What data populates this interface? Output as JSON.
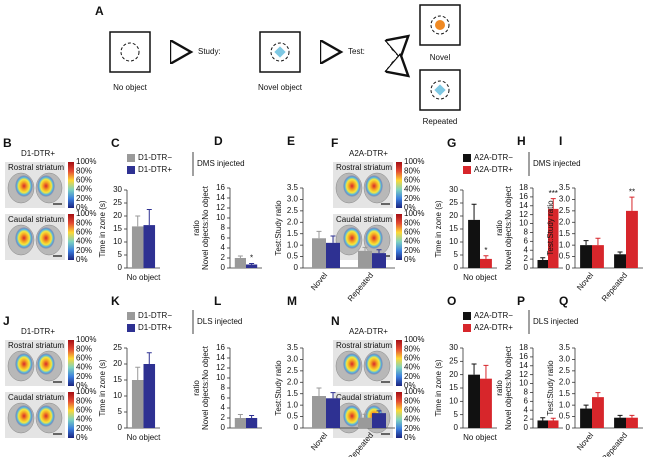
{
  "panel_a": {
    "label": "A",
    "no_object": "No object",
    "study": "Study:",
    "study_object": "Novel object",
    "test": "Test:",
    "novel": "Novel",
    "repeated": "Repeated"
  },
  "image_panels": [
    {
      "label": "B",
      "title": "D1-DTR+",
      "sections": [
        "Rostral striatum",
        "Caudal striatum"
      ]
    },
    {
      "label": "F",
      "title": "A2A-DTR+",
      "sections": [
        "Rostral striatum",
        "Caudal striatum"
      ]
    },
    {
      "label": "J",
      "title": "D1-DTR+",
      "sections": [
        "Rostral   striatum",
        "Caudal  striatum"
      ]
    },
    {
      "label": "N",
      "title": "A2A-DTR+",
      "sections": [
        "Rostral striatum",
        "Caudal striatum"
      ]
    }
  ],
  "colorbar_ticks": [
    "100%",
    "80%",
    "60%",
    "40%",
    "20%",
    "0%"
  ],
  "chart_data": [
    {
      "type": "bar",
      "label": "C",
      "ylabel": "Time in zone (s)",
      "categories": [
        "No object"
      ],
      "ylim": [
        0,
        30
      ],
      "yticks": [
        0,
        5,
        10,
        15,
        20,
        25,
        30
      ],
      "legend_note": "DMS injected",
      "series": [
        {
          "name": "D1-DTR−",
          "color": "#9a9a9a",
          "values": [
            16
          ],
          "errors": [
            4
          ]
        },
        {
          "name": "D1-DTR+",
          "color": "#2e3192",
          "values": [
            16.5
          ],
          "errors": [
            6
          ]
        }
      ]
    },
    {
      "type": "bar",
      "label": "D",
      "ylabel": [
        "Novel objects:No object",
        "ratio"
      ],
      "categories": [
        null
      ],
      "ylim": [
        0,
        16
      ],
      "yticks": [
        0,
        2,
        4,
        6,
        8,
        10,
        12,
        14,
        16
      ],
      "series": [
        {
          "color": "#9a9a9a",
          "values": [
            2
          ],
          "errors": [
            0.4
          ]
        },
        {
          "color": "#2e3192",
          "values": [
            0.7
          ],
          "errors": [
            0.2
          ],
          "annotations": [
            "*"
          ]
        }
      ]
    },
    {
      "type": "bar",
      "label": "E",
      "ylabel": "Test:Study ratio",
      "categories": [
        "Novel",
        "Repeated"
      ],
      "ylim": [
        0,
        3.5
      ],
      "yticks": [
        0,
        0.5,
        {
          "value": 1,
          "label": "1.0"
        },
        1.5,
        {
          "value": 2,
          "label": "2.0"
        },
        2.5,
        {
          "value": 3,
          "label": "3.0"
        },
        3.5
      ],
      "series": [
        {
          "color": "#9a9a9a",
          "values": [
            1.3,
            0.75
          ],
          "errors": [
            0.3,
            0.15
          ]
        },
        {
          "color": "#2e3192",
          "values": [
            1.1,
            0.65
          ],
          "errors": [
            0.3,
            0.15
          ]
        }
      ]
    },
    {
      "type": "bar",
      "label": "G",
      "ylabel": "Time in zone (s)",
      "categories": [
        "No object"
      ],
      "ylim": [
        0,
        30
      ],
      "yticks": [
        0,
        5,
        10,
        15,
        20,
        25,
        30
      ],
      "legend_note": "DMS injected",
      "series": [
        {
          "name": "A2A-DTR−",
          "color": "#111111",
          "values": [
            18.5
          ],
          "errors": [
            6
          ]
        },
        {
          "name": "A2A-DTR+",
          "color": "#d7262b",
          "values": [
            3.5
          ],
          "errors": [
            1.2
          ],
          "annotations": [
            "*"
          ]
        }
      ]
    },
    {
      "type": "bar",
      "label": "H",
      "ylabel": [
        "Novel objects:No object",
        "ratio"
      ],
      "categories": [
        null
      ],
      "ylim": [
        0,
        18
      ],
      "yticks": [
        0,
        2,
        4,
        6,
        8,
        10,
        12,
        14,
        16,
        18
      ],
      "series": [
        {
          "color": "#111111",
          "values": [
            1.8
          ],
          "errors": [
            0.5
          ]
        },
        {
          "color": "#d7262b",
          "values": [
            13.3
          ],
          "errors": [
            2.3
          ],
          "annotations": [
            "***"
          ]
        }
      ]
    },
    {
      "type": "bar",
      "label": "I",
      "ylabel": "Test:Study ratio",
      "categories": [
        "Novel",
        "Repeated"
      ],
      "ylim": [
        0,
        3.5
      ],
      "yticks": [
        0,
        0.5,
        {
          "value": 1,
          "label": "1.0"
        },
        1.5,
        {
          "value": 2,
          "label": "2.0"
        },
        2.5,
        {
          "value": 3,
          "label": "3.0"
        },
        3.5
      ],
      "series": [
        {
          "color": "#111111",
          "values": [
            1.0,
            0.6
          ],
          "errors": [
            0.2,
            0.1
          ]
        },
        {
          "color": "#d7262b",
          "values": [
            1.0,
            2.5
          ],
          "errors": [
            0.3,
            0.6
          ],
          "annotations": [
            null,
            "**"
          ]
        }
      ]
    },
    {
      "type": "bar",
      "label": "K",
      "ylabel": "Time in zone (s)",
      "categories": [
        "No object"
      ],
      "ylim": [
        0,
        25
      ],
      "yticks": [
        0,
        5,
        10,
        15,
        20,
        25
      ],
      "legend_note": "DLS injected",
      "series": [
        {
          "name": "D1-DTR−",
          "color": "#9a9a9a",
          "values": [
            15
          ],
          "errors": [
            4
          ]
        },
        {
          "name": "D1-DTR+",
          "color": "#2e3192",
          "values": [
            20
          ],
          "errors": [
            3.5
          ]
        }
      ]
    },
    {
      "type": "bar",
      "label": "L",
      "ylabel": [
        "Novel objects:No object",
        "ratio"
      ],
      "categories": [
        null
      ],
      "ylim": [
        0,
        16
      ],
      "yticks": [
        0,
        2,
        4,
        6,
        8,
        10,
        12,
        14,
        16
      ],
      "series": [
        {
          "color": "#9a9a9a",
          "values": [
            2
          ],
          "errors": [
            0.7
          ]
        },
        {
          "color": "#2e3192",
          "values": [
            2
          ],
          "errors": [
            0.5
          ]
        }
      ]
    },
    {
      "type": "bar",
      "label": "M",
      "ylabel": "Test:Study ratio",
      "categories": [
        "Novel",
        "Repeated"
      ],
      "ylim": [
        0,
        3.5
      ],
      "yticks": [
        0,
        0.5,
        {
          "value": 1,
          "label": "1.0"
        },
        1.5,
        {
          "value": 2,
          "label": "2.0"
        },
        2.5,
        {
          "value": 3,
          "label": "3.0"
        },
        3.5
      ],
      "series": [
        {
          "color": "#9a9a9a",
          "values": [
            1.4,
            0.45
          ],
          "errors": [
            0.35,
            0.15
          ]
        },
        {
          "color": "#2e3192",
          "values": [
            1.3,
            0.65
          ],
          "errors": [
            0.25,
            0.1
          ]
        }
      ]
    },
    {
      "type": "bar",
      "label": "O",
      "ylabel": "Time in zone (s)",
      "categories": [
        "No object"
      ],
      "ylim": [
        0,
        30
      ],
      "yticks": [
        0,
        5,
        10,
        15,
        20,
        25,
        30
      ],
      "legend_note": "DLS injected",
      "series": [
        {
          "name": "A2A-DTR−",
          "color": "#111111",
          "values": [
            20
          ],
          "errors": [
            4
          ]
        },
        {
          "name": "A2A-DTR+",
          "color": "#d7262b",
          "values": [
            18.5
          ],
          "errors": [
            5
          ]
        }
      ]
    },
    {
      "type": "bar",
      "label": "P",
      "ylabel": [
        "Novel objects:No object",
        "ratio"
      ],
      "categories": [
        null
      ],
      "ylim": [
        0,
        18
      ],
      "yticks": [
        0,
        2,
        4,
        6,
        8,
        10,
        12,
        14,
        16,
        18
      ],
      "series": [
        {
          "color": "#111111",
          "values": [
            1.7
          ],
          "errors": [
            0.6
          ]
        },
        {
          "color": "#d7262b",
          "values": [
            1.7
          ],
          "errors": [
            0.5
          ]
        }
      ]
    },
    {
      "type": "bar",
      "label": "Q",
      "ylabel": "Test:Study ratio",
      "categories": [
        "Novel",
        "Repeated"
      ],
      "ylim": [
        0,
        3.5
      ],
      "yticks": [
        0,
        0.5,
        {
          "value": 1,
          "label": "1.0"
        },
        1.5,
        {
          "value": 2,
          "label": "2.0"
        },
        2.5,
        {
          "value": 3,
          "label": "3.0"
        },
        3.5
      ],
      "series": [
        {
          "color": "#111111",
          "values": [
            0.85,
            0.45
          ],
          "errors": [
            0.15,
            0.1
          ]
        },
        {
          "color": "#d7262b",
          "values": [
            1.35,
            0.45
          ],
          "errors": [
            0.2,
            0.1
          ]
        }
      ]
    }
  ]
}
